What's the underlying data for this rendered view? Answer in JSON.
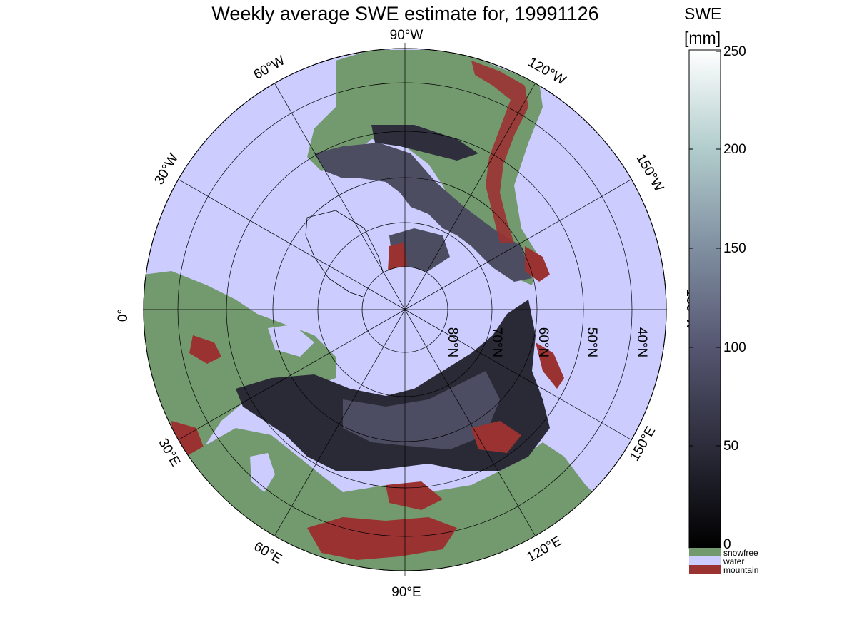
{
  "title": "Weekly average SWE estimate for, 19991126",
  "colorbar": {
    "title_line1": "SWE",
    "title_line2": "[mm]",
    "ticks": [
      "250",
      "200",
      "150",
      "100",
      "50",
      "0"
    ],
    "categories": [
      {
        "label": "snowfree",
        "color": "#739a6e"
      },
      {
        "label": "water",
        "color": "#ccccff"
      },
      {
        "label": "mountain",
        "color": "#9b3232"
      }
    ]
  },
  "colors": {
    "water": "#ccccff",
    "land": "#739a6e",
    "mountain": "#9b3232",
    "snow_dark": "#2a2a36",
    "snow_mid": "#55556e",
    "ice": "#ccccff"
  },
  "lon_labels": {
    "w90": "90°W",
    "w120": "120°W",
    "w60": "60°W",
    "w150": "150°W",
    "w30": "30°W",
    "w180": "180°W",
    "e0": "0°",
    "e150": "150°E",
    "e30": "30°E",
    "e120": "120°E",
    "e60": "60°E",
    "e90": "90°E"
  },
  "lat_labels": [
    "80°N",
    "70°N",
    "60°N",
    "50°N",
    "40°N"
  ]
}
